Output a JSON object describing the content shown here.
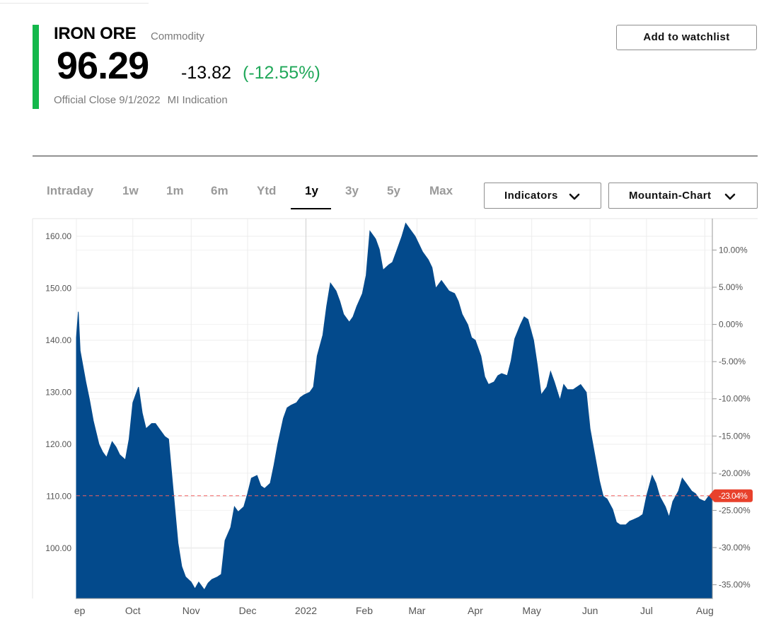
{
  "header": {
    "name": "IRON ORE",
    "asset_type": "Commodity",
    "price": "96.29",
    "change": "-13.82",
    "change_pct": "(-12.55%)",
    "close_label": "Official Close 9/1/2022",
    "indication_label": "MI Indication",
    "watchlist_label": "Add to watchlist"
  },
  "tabs": [
    {
      "label": "Intraday",
      "active": false
    },
    {
      "label": "1w",
      "active": false
    },
    {
      "label": "1m",
      "active": false
    },
    {
      "label": "6m",
      "active": false
    },
    {
      "label": "Ytd",
      "active": false
    },
    {
      "label": "1y",
      "active": true
    },
    {
      "label": "3y",
      "active": false
    },
    {
      "label": "5y",
      "active": false
    },
    {
      "label": "Max",
      "active": false
    }
  ],
  "controls": {
    "indicators_label": "Indicators",
    "chart_type_label": "Mountain-Chart"
  },
  "colors": {
    "accent": "#14b84b",
    "area_fill": "#034a8c",
    "positive": "#21a85a",
    "reference_line": "#f26161",
    "marker": "#e8412c"
  },
  "chart_data": {
    "type": "area",
    "title": "",
    "xlabel": "",
    "ylabel": "",
    "ylim": [
      88.5,
      163
    ],
    "baseline_value": 110.11,
    "left_ticks": [
      "100.00",
      "110.00",
      "120.00",
      "130.00",
      "140.00",
      "150.00",
      "160.00"
    ],
    "right_ticks": [
      "-35.00%",
      "-30.00%",
      "-25.00%",
      "-20.00%",
      "-15.00%",
      "-10.00%",
      "-5.00%",
      "0.00%",
      "5.00%",
      "10.00%"
    ],
    "right_tick_values": [
      -35,
      -30,
      -25,
      -20,
      -15,
      -10,
      -5,
      0,
      5,
      10
    ],
    "pct_reference": 143.05,
    "marker_label": "-23.04%",
    "x_labels": [
      "Sep",
      "Oct",
      "Nov",
      "Dec",
      "2022",
      "Feb",
      "Mar",
      "Apr",
      "May",
      "Jun",
      "Jul",
      "Aug"
    ],
    "series": [
      {
        "dates": [
          "2021-09-01",
          "2021-09-02",
          "2021-09-03",
          "2021-09-06",
          "2021-09-08",
          "2021-09-10",
          "2021-09-13",
          "2021-09-15",
          "2021-09-17",
          "2021-09-20",
          "2021-09-22",
          "2021-09-24",
          "2021-09-27",
          "2021-09-29",
          "2021-10-01",
          "2021-10-04",
          "2021-10-06",
          "2021-10-08",
          "2021-10-11",
          "2021-10-13",
          "2021-10-15",
          "2021-10-18",
          "2021-10-20",
          "2021-10-22",
          "2021-10-25",
          "2021-10-27",
          "2021-10-29",
          "2021-11-01",
          "2021-11-03",
          "2021-11-05",
          "2021-11-08",
          "2021-11-10",
          "2021-11-12",
          "2021-11-15",
          "2021-11-17",
          "2021-11-19",
          "2021-11-22",
          "2021-11-24",
          "2021-11-26",
          "2021-11-29",
          "2021-12-01",
          "2021-12-03",
          "2021-12-06",
          "2021-12-08",
          "2021-12-10",
          "2021-12-13",
          "2021-12-15",
          "2021-12-17",
          "2021-12-20",
          "2021-12-22",
          "2021-12-24",
          "2021-12-27",
          "2021-12-29",
          "2021-12-31",
          "2022-01-03",
          "2022-01-05",
          "2022-01-07",
          "2022-01-10",
          "2022-01-12",
          "2022-01-14",
          "2022-01-17",
          "2022-01-19",
          "2022-01-21",
          "2022-01-24",
          "2022-01-26",
          "2022-01-28",
          "2022-01-31",
          "2022-02-02",
          "2022-02-04",
          "2022-02-07",
          "2022-02-09",
          "2022-02-11",
          "2022-02-14",
          "2022-02-16",
          "2022-02-18",
          "2022-02-21",
          "2022-02-23",
          "2022-02-25",
          "2022-02-28",
          "2022-03-02",
          "2022-03-04",
          "2022-03-07",
          "2022-03-09",
          "2022-03-11",
          "2022-03-14",
          "2022-03-16",
          "2022-03-18",
          "2022-03-21",
          "2022-03-23",
          "2022-03-25",
          "2022-03-28",
          "2022-03-30",
          "2022-04-01",
          "2022-04-04",
          "2022-04-06",
          "2022-04-08",
          "2022-04-11",
          "2022-04-13",
          "2022-04-15",
          "2022-04-18",
          "2022-04-20",
          "2022-04-22",
          "2022-04-25",
          "2022-04-27",
          "2022-04-29",
          "2022-05-02",
          "2022-05-04",
          "2022-05-06",
          "2022-05-09",
          "2022-05-11",
          "2022-05-13",
          "2022-05-16",
          "2022-05-18",
          "2022-05-20",
          "2022-05-23",
          "2022-05-25",
          "2022-05-27",
          "2022-05-30",
          "2022-06-01",
          "2022-06-03",
          "2022-06-06",
          "2022-06-08",
          "2022-06-10",
          "2022-06-13",
          "2022-06-15",
          "2022-06-17",
          "2022-06-20",
          "2022-06-22",
          "2022-06-24",
          "2022-06-27",
          "2022-06-29",
          "2022-07-01",
          "2022-07-04",
          "2022-07-06",
          "2022-07-08",
          "2022-07-11",
          "2022-07-13",
          "2022-07-15",
          "2022-07-18",
          "2022-07-20",
          "2022-07-22",
          "2022-07-25",
          "2022-07-27",
          "2022-07-29",
          "2022-08-01",
          "2022-08-03",
          "2022-08-05"
        ],
        "values": [
          140.5,
          145.5,
          138,
          132,
          128.5,
          124.5,
          120,
          118.5,
          117.5,
          120.5,
          119.5,
          118,
          117,
          121,
          128,
          131,
          126,
          123,
          124,
          124,
          123,
          121.5,
          121,
          113,
          101,
          96.5,
          94.5,
          93.5,
          92.2,
          93.5,
          92,
          93.3,
          94,
          94.5,
          95,
          101.5,
          104,
          108,
          107,
          108,
          110.5,
          113.5,
          114,
          112,
          111.5,
          112.5,
          116,
          120,
          125,
          127,
          127.5,
          128,
          129,
          129.5,
          130,
          131,
          137,
          141,
          146.5,
          151,
          149.5,
          147.5,
          145,
          143.5,
          144.5,
          146.5,
          149,
          152.5,
          161,
          159.5,
          157.5,
          153.5,
          154.5,
          155,
          157,
          160,
          162.5,
          161.5,
          160,
          158.5,
          157,
          155.5,
          154,
          150,
          151.5,
          150.5,
          149.5,
          149,
          147.5,
          145,
          143,
          140.5,
          140,
          137,
          133,
          131.5,
          132,
          133.2,
          133.6,
          133.2,
          136,
          140.3,
          143,
          144.5,
          144,
          140,
          135.2,
          129.5,
          131,
          134,
          132,
          128.5,
          131.5,
          130.5,
          130.5,
          131,
          131.5,
          130,
          123,
          119,
          113,
          110,
          109.5,
          107.5,
          105,
          104.5,
          104.5,
          105.2,
          105.5,
          106,
          106.5,
          110,
          114,
          112.5,
          110,
          108,
          106,
          109,
          111,
          113.5,
          112.5,
          111,
          110.5,
          109.5,
          109,
          110,
          110.1
        ]
      }
    ]
  }
}
